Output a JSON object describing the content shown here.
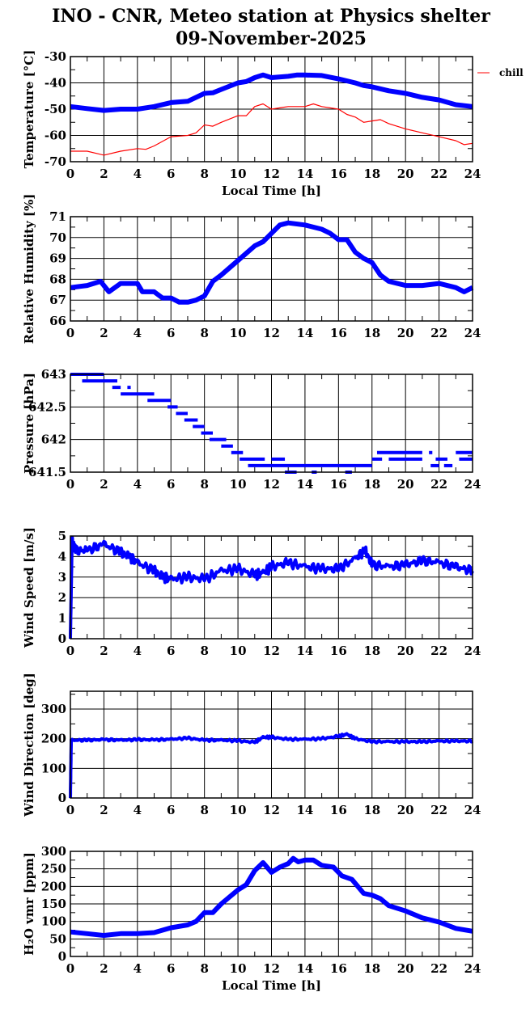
{
  "title": [
    "INO - CNR, Meteo station at Physics shelter",
    "09-November-2025"
  ],
  "colors": {
    "blue": "#0000ff",
    "red": "#ff0000",
    "grid": "#000000"
  },
  "chart_data": [
    {
      "type": "line",
      "ylabel": "Temperature [°C]",
      "xlabel": "Local Time [h]",
      "xlim": [
        0,
        24
      ],
      "xticks": [
        0,
        2,
        4,
        6,
        8,
        10,
        12,
        14,
        16,
        18,
        20,
        22,
        24
      ],
      "ylim": [
        -70,
        -30
      ],
      "yticks": [
        -70,
        -60,
        -50,
        -40,
        -30
      ],
      "grid": true,
      "legend": "right",
      "series": [
        {
          "color": "#0000ff",
          "style": "thick",
          "x": [
            0,
            1,
            2,
            3,
            4,
            5,
            6,
            7,
            8,
            8.5,
            9,
            10,
            10.5,
            11,
            11.5,
            12,
            13,
            13.5,
            14,
            15,
            16,
            17,
            17.5,
            18,
            19,
            20,
            21,
            22,
            23,
            24
          ],
          "y": [
            -49,
            -49.8,
            -50.5,
            -50,
            -50,
            -49,
            -47.5,
            -47,
            -44,
            -43.8,
            -42.5,
            -40,
            -39.5,
            -38,
            -37,
            -38,
            -37.5,
            -37,
            -37,
            -37.2,
            -38.5,
            -40,
            -41,
            -41.5,
            -43,
            -44,
            -45.5,
            -46.5,
            -48.3,
            -49
          ]
        },
        {
          "name": "chill",
          "color": "#ff0000",
          "style": "thin",
          "x": [
            0,
            1,
            2,
            3,
            4,
            4.5,
            5,
            6,
            7,
            7.5,
            8,
            8.5,
            9,
            10,
            10.5,
            11,
            11.5,
            12,
            12.5,
            13,
            14,
            14.5,
            15,
            16,
            16.5,
            17,
            17.5,
            18,
            18.5,
            19,
            20,
            21,
            22,
            23,
            23.5,
            24
          ],
          "y": [
            -66,
            -66,
            -67.5,
            -66,
            -65,
            -65.3,
            -64,
            -60.5,
            -60,
            -59,
            -56,
            -56.5,
            -55,
            -52.5,
            -52.5,
            -49,
            -48,
            -50,
            -49.5,
            -49,
            -49,
            -48,
            -49,
            -50,
            -52,
            -53,
            -55,
            -54.5,
            -54,
            -55.5,
            -57.5,
            -59,
            -60.5,
            -62,
            -63.5,
            -63
          ]
        }
      ]
    },
    {
      "type": "line",
      "ylabel": "Relative Humidity [%]",
      "xlim": [
        0,
        24
      ],
      "xticks": [
        0,
        2,
        4,
        6,
        8,
        10,
        12,
        14,
        16,
        18,
        20,
        22,
        24
      ],
      "ylim": [
        66,
        71
      ],
      "yticks": [
        66,
        67,
        68,
        69,
        70,
        71
      ],
      "grid": true,
      "series": [
        {
          "color": "#0000ff",
          "style": "thick",
          "x": [
            0,
            1,
            1.8,
            2.3,
            3,
            4,
            4.3,
            5,
            5.5,
            6,
            6.5,
            7,
            7.5,
            8,
            8.5,
            9,
            10,
            11,
            11.5,
            12,
            12.5,
            13,
            14,
            15,
            15.5,
            16,
            16.5,
            17,
            17.5,
            18,
            18.5,
            19,
            20,
            21,
            22,
            23,
            23.5,
            24
          ],
          "y": [
            67.6,
            67.7,
            67.9,
            67.4,
            67.8,
            67.8,
            67.4,
            67.4,
            67.1,
            67.1,
            66.9,
            66.9,
            67,
            67.2,
            67.9,
            68.2,
            68.9,
            69.6,
            69.8,
            70.2,
            70.6,
            70.7,
            70.6,
            70.4,
            70.2,
            69.9,
            69.9,
            69.3,
            69,
            68.8,
            68.2,
            67.9,
            67.7,
            67.7,
            67.8,
            67.6,
            67.4,
            67.6
          ]
        }
      ]
    },
    {
      "type": "scatter",
      "ylabel": "Pressure [hPa]",
      "xlim": [
        0,
        24
      ],
      "xticks": [
        0,
        2,
        4,
        6,
        8,
        10,
        12,
        14,
        16,
        18,
        20,
        22,
        24
      ],
      "ylim": [
        641.5,
        643
      ],
      "yticks": [
        641.5,
        642,
        642.5,
        643
      ],
      "grid": true,
      "series": [
        {
          "color": "#0000ff",
          "style": "steps",
          "segments": [
            [
              0,
              2,
              643
            ],
            [
              0.7,
              2.8,
              642.9
            ],
            [
              2.5,
              3,
              642.8
            ],
            [
              3.4,
              3.6,
              642.8
            ],
            [
              3,
              5,
              642.7
            ],
            [
              4.6,
              6,
              642.6
            ],
            [
              5.8,
              6.4,
              642.5
            ],
            [
              6.3,
              7,
              642.4
            ],
            [
              6.8,
              7.6,
              642.3
            ],
            [
              7.3,
              8,
              642.2
            ],
            [
              7.8,
              8.5,
              642.1
            ],
            [
              8.3,
              9.3,
              642
            ],
            [
              9,
              9.7,
              641.9
            ],
            [
              9.6,
              10.3,
              641.8
            ],
            [
              10.1,
              11.6,
              641.7
            ],
            [
              12,
              12.8,
              641.7
            ],
            [
              10.6,
              18,
              641.6
            ],
            [
              12.8,
              13.5,
              641.5
            ],
            [
              14.4,
              14.7,
              641.5
            ],
            [
              16.4,
              16.8,
              641.5
            ],
            [
              18,
              18.6,
              641.7
            ],
            [
              18.3,
              21,
              641.8
            ],
            [
              21.4,
              21.6,
              641.8
            ],
            [
              19,
              21,
              641.7
            ],
            [
              21.8,
              22.5,
              641.7
            ],
            [
              21.5,
              22,
              641.6
            ],
            [
              22.3,
              22.8,
              641.6
            ],
            [
              23,
              24,
              641.8
            ],
            [
              23.2,
              24,
              641.7
            ]
          ]
        }
      ]
    },
    {
      "type": "line",
      "ylabel": "Wind Speed [m/s]",
      "xlim": [
        0,
        24
      ],
      "xticks": [
        0,
        2,
        4,
        6,
        8,
        10,
        12,
        14,
        16,
        18,
        20,
        22,
        24
      ],
      "ylim": [
        0,
        5
      ],
      "yticks": [
        0,
        1,
        2,
        3,
        4,
        5
      ],
      "grid": true,
      "series": [
        {
          "color": "#0000ff",
          "style": "noisy",
          "x": [
            0,
            0.1,
            0.3,
            1,
            2,
            3,
            3.5,
            4,
            5,
            5.5,
            6,
            7,
            8,
            9,
            10,
            11,
            11.5,
            12,
            13,
            14,
            15,
            16,
            17,
            17.6,
            18,
            19,
            20,
            21,
            22,
            23,
            24
          ],
          "y": [
            0,
            4.8,
            4.3,
            4.3,
            4.6,
            4.2,
            4.0,
            3.7,
            3.3,
            3.0,
            2.9,
            3.0,
            2.9,
            3.3,
            3.4,
            3.1,
            3.2,
            3.5,
            3.7,
            3.5,
            3.4,
            3.4,
            3.9,
            4.3,
            3.6,
            3.5,
            3.6,
            3.8,
            3.7,
            3.5,
            3.3
          ]
        }
      ]
    },
    {
      "type": "line",
      "ylabel": "Wind Direction [deg]",
      "xlim": [
        0,
        24
      ],
      "xticks": [
        0,
        2,
        4,
        6,
        8,
        10,
        12,
        14,
        16,
        18,
        20,
        22,
        24
      ],
      "ylim": [
        0,
        360
      ],
      "yticks": [
        0,
        100,
        200,
        300
      ],
      "grid": true,
      "series": [
        {
          "color": "#0000ff",
          "style": "noisy",
          "x": [
            0,
            0.05,
            1,
            2,
            3,
            4,
            5,
            6,
            7,
            8,
            9,
            10,
            11,
            11.5,
            12,
            13,
            14,
            15,
            16,
            16.5,
            17,
            18,
            19,
            20,
            21,
            22,
            23,
            24
          ],
          "y": [
            0,
            195,
            195,
            197,
            195,
            197,
            196,
            198,
            202,
            195,
            195,
            193,
            188,
            205,
            205,
            198,
            198,
            200,
            208,
            215,
            200,
            190,
            190,
            190,
            190,
            192,
            192,
            192
          ]
        }
      ]
    },
    {
      "type": "line",
      "ylabel": "H₂O vmr [ppm]",
      "xlabel": "Local Time [h]",
      "xlim": [
        0,
        24
      ],
      "xticks": [
        0,
        2,
        4,
        6,
        8,
        10,
        12,
        14,
        16,
        18,
        20,
        22,
        24
      ],
      "ylim": [
        0,
        300
      ],
      "yticks": [
        0,
        50,
        100,
        150,
        200,
        250,
        300
      ],
      "grid": true,
      "series": [
        {
          "color": "#0000ff",
          "style": "thick",
          "x": [
            0,
            1,
            2,
            3,
            4,
            5,
            6,
            7,
            7.5,
            8,
            8.5,
            9,
            10,
            10.5,
            11,
            11.5,
            12,
            12.5,
            13,
            13.3,
            13.6,
            14,
            14.5,
            15,
            15.7,
            16.2,
            16.8,
            17.5,
            18,
            18.5,
            19,
            20,
            20.5,
            21,
            22,
            23,
            24
          ],
          "y": [
            70,
            65,
            60,
            65,
            65,
            68,
            82,
            90,
            100,
            125,
            125,
            150,
            190,
            205,
            245,
            268,
            240,
            255,
            265,
            280,
            270,
            275,
            275,
            260,
            255,
            230,
            220,
            180,
            175,
            165,
            145,
            130,
            120,
            110,
            98,
            80,
            72
          ]
        }
      ]
    }
  ]
}
